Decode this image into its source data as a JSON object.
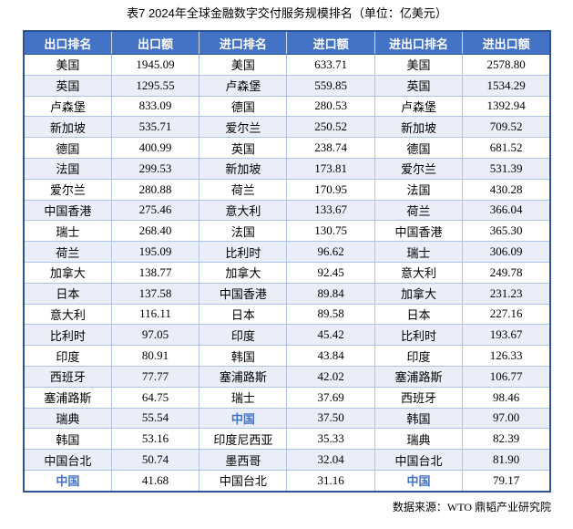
{
  "title": "表7 2024年全球金融数字交付服务规模排名（单位：亿美元）",
  "source": "数据来源：WTO 鼎韬产业研究院",
  "colors": {
    "header_bg": "#4472C4",
    "header_text": "#FFFFFF",
    "header_divider": "#CBD8EF",
    "band_bg": "#E9EEF8",
    "border_outer": "#2F5496",
    "border_inner": "#AEC3E7",
    "highlight": "#4472C4"
  },
  "table": {
    "headers": [
      "出口排名",
      "出口额",
      "进口排名",
      "进口额",
      "进出口排名",
      "进出口额"
    ],
    "highlight_text": "中国",
    "rows": [
      [
        "美国",
        "1945.09",
        "美国",
        "633.71",
        "美国",
        "2578.80"
      ],
      [
        "英国",
        "1295.55",
        "卢森堡",
        "559.85",
        "英国",
        "1534.29"
      ],
      [
        "卢森堡",
        "833.09",
        "德国",
        "280.53",
        "卢森堡",
        "1392.94"
      ],
      [
        "新加坡",
        "535.71",
        "爱尔兰",
        "250.52",
        "新加坡",
        "709.52"
      ],
      [
        "德国",
        "400.99",
        "英国",
        "238.74",
        "德国",
        "681.52"
      ],
      [
        "法国",
        "299.53",
        "新加坡",
        "173.81",
        "爱尔兰",
        "531.39"
      ],
      [
        "爱尔兰",
        "280.88",
        "荷兰",
        "170.95",
        "法国",
        "430.28"
      ],
      [
        "中国香港",
        "275.46",
        "意大利",
        "133.67",
        "荷兰",
        "366.04"
      ],
      [
        "瑞士",
        "268.40",
        "法国",
        "130.75",
        "中国香港",
        "365.30"
      ],
      [
        "荷兰",
        "195.09",
        "比利时",
        "96.62",
        "瑞士",
        "306.09"
      ],
      [
        "加拿大",
        "138.77",
        "加拿大",
        "92.45",
        "意大利",
        "249.78"
      ],
      [
        "日本",
        "137.58",
        "中国香港",
        "89.84",
        "加拿大",
        "231.23"
      ],
      [
        "意大利",
        "116.11",
        "日本",
        "89.58",
        "日本",
        "227.16"
      ],
      [
        "比利时",
        "97.05",
        "印度",
        "45.42",
        "比利时",
        "193.67"
      ],
      [
        "印度",
        "80.91",
        "韩国",
        "43.84",
        "印度",
        "126.33"
      ],
      [
        "西班牙",
        "77.77",
        "塞浦路斯",
        "42.02",
        "塞浦路斯",
        "106.77"
      ],
      [
        "塞浦路斯",
        "64.75",
        "瑞士",
        "37.69",
        "西班牙",
        "98.46"
      ],
      [
        "瑞典",
        "55.54",
        "中国",
        "37.50",
        "韩国",
        "97.00"
      ],
      [
        "韩国",
        "53.16",
        "印度尼西亚",
        "35.33",
        "瑞典",
        "82.39"
      ],
      [
        "中国台北",
        "50.74",
        "墨西哥",
        "32.04",
        "中国台北",
        "81.90"
      ],
      [
        "中国",
        "41.68",
        "中国台北",
        "31.16",
        "中国",
        "79.17"
      ]
    ]
  }
}
